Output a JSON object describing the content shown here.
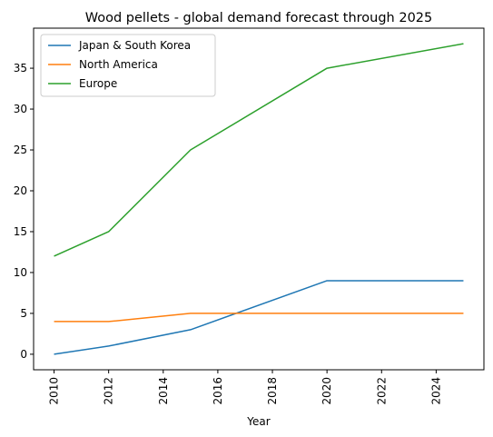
{
  "chart_data": {
    "type": "line",
    "title": "Wood pellets - global demand forecast through 2025",
    "xlabel": "Year",
    "ylabel": "",
    "xlim": [
      2009.25,
      2025.75
    ],
    "ylim": [
      -1.9,
      39.9
    ],
    "xticks": [
      2010,
      2012,
      2014,
      2016,
      2018,
      2020,
      2022,
      2024
    ],
    "yticks": [
      0,
      5,
      10,
      15,
      20,
      25,
      30,
      35
    ],
    "grid": false,
    "legend": "top-left",
    "x": [
      2010,
      2012,
      2015,
      2020,
      2025
    ],
    "series": [
      {
        "name": "Japan & South Korea",
        "color": "#1f77b4",
        "values": [
          0,
          1,
          3,
          9,
          9
        ]
      },
      {
        "name": "North America",
        "color": "#ff7f0e",
        "values": [
          4,
          4,
          5,
          5,
          5
        ]
      },
      {
        "name": "Europe",
        "color": "#2ca02c",
        "values": [
          12,
          15,
          25,
          35,
          38
        ]
      }
    ]
  }
}
